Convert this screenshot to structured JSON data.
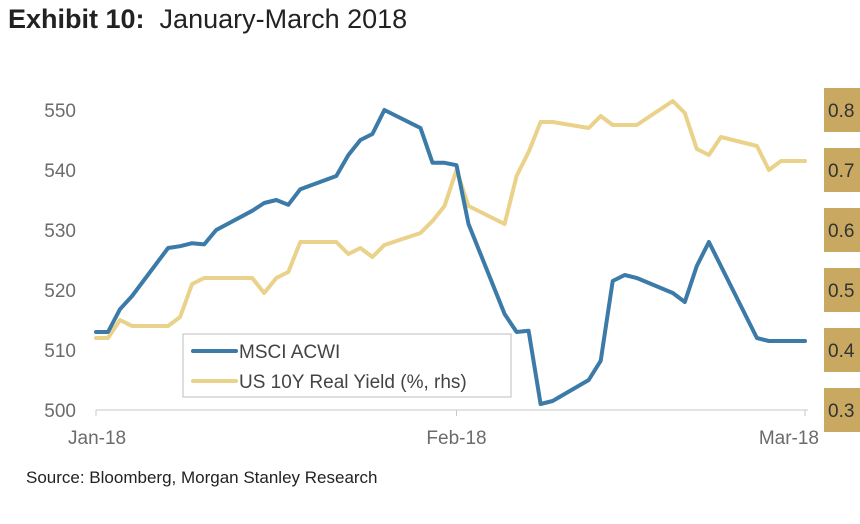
{
  "title": {
    "lead": "Exhibit 10:",
    "rest": "January-March 2018"
  },
  "source": "Source: Bloomberg, Morgan Stanley Research",
  "colors": {
    "msci": "#3c7aa8",
    "yield": "#ead28a",
    "rhs_tag": "#c9a962",
    "axis": "#c8c8c8"
  },
  "chart_data": {
    "type": "line",
    "x_axis": {
      "ticks": [
        "Jan-18",
        "Feb-18",
        "Mar-18"
      ],
      "range": [
        "2018-01-02",
        "2018-03-02"
      ]
    },
    "y_left": {
      "ticks": [
        "550",
        "540",
        "530",
        "520",
        "510",
        "500"
      ],
      "range": [
        500,
        552
      ]
    },
    "y_right": {
      "ticks": [
        "0.8",
        "0.7",
        "0.6",
        "0.5",
        "0.4",
        "0.3"
      ],
      "range": [
        0.3,
        0.82
      ]
    },
    "legend": "lower-left",
    "series": [
      {
        "name": "MSCI ACWI",
        "axis": "left",
        "x": [
          "2018-01-02",
          "2018-01-03",
          "2018-01-04",
          "2018-01-05",
          "2018-01-08",
          "2018-01-09",
          "2018-01-10",
          "2018-01-11",
          "2018-01-12",
          "2018-01-15",
          "2018-01-16",
          "2018-01-17",
          "2018-01-18",
          "2018-01-19",
          "2018-01-22",
          "2018-01-23",
          "2018-01-24",
          "2018-01-25",
          "2018-01-26",
          "2018-01-29",
          "2018-01-30",
          "2018-01-31",
          "2018-02-01",
          "2018-02-02",
          "2018-02-05",
          "2018-02-06",
          "2018-02-07",
          "2018-02-08",
          "2018-02-09",
          "2018-02-12",
          "2018-02-13",
          "2018-02-14",
          "2018-02-15",
          "2018-02-16",
          "2018-02-19",
          "2018-02-20",
          "2018-02-21",
          "2018-02-22",
          "2018-02-23",
          "2018-02-26",
          "2018-02-27",
          "2018-02-28",
          "2018-03-01",
          "2018-03-02"
        ],
        "values": [
          513.0,
          513.0,
          516.8,
          519.0,
          527.0,
          527.3,
          527.8,
          527.6,
          530.0,
          533.2,
          534.5,
          535.0,
          534.2,
          536.8,
          539.0,
          542.5,
          545.0,
          546.0,
          550.0,
          547.0,
          541.2,
          541.2,
          540.8,
          531.0,
          516.0,
          513.0,
          513.2,
          501.0,
          501.5,
          505.0,
          508.2,
          521.5,
          522.5,
          522.0,
          519.5,
          518.0,
          524.0,
          528.0,
          524.0,
          512.0,
          511.5,
          511.5,
          511.5,
          511.5
        ]
      },
      {
        "name": "US 10Y Real Yield (%, rhs)",
        "axis": "right",
        "x": [
          "2018-01-02",
          "2018-01-03",
          "2018-01-04",
          "2018-01-05",
          "2018-01-08",
          "2018-01-09",
          "2018-01-10",
          "2018-01-11",
          "2018-01-12",
          "2018-01-15",
          "2018-01-16",
          "2018-01-17",
          "2018-01-18",
          "2018-01-19",
          "2018-01-22",
          "2018-01-23",
          "2018-01-24",
          "2018-01-25",
          "2018-01-26",
          "2018-01-29",
          "2018-01-30",
          "2018-01-31",
          "2018-02-01",
          "2018-02-02",
          "2018-02-05",
          "2018-02-06",
          "2018-02-07",
          "2018-02-08",
          "2018-02-09",
          "2018-02-12",
          "2018-02-13",
          "2018-02-14",
          "2018-02-15",
          "2018-02-16",
          "2018-02-19",
          "2018-02-20",
          "2018-02-21",
          "2018-02-22",
          "2018-02-23",
          "2018-02-26",
          "2018-02-27",
          "2018-02-28",
          "2018-03-01",
          "2018-03-02"
        ],
        "values": [
          0.42,
          0.42,
          0.45,
          0.44,
          0.44,
          0.455,
          0.51,
          0.52,
          0.52,
          0.52,
          0.495,
          0.52,
          0.53,
          0.58,
          0.58,
          0.56,
          0.57,
          0.555,
          0.575,
          0.595,
          0.615,
          0.64,
          0.7,
          0.64,
          0.61,
          0.69,
          0.73,
          0.78,
          0.78,
          0.77,
          0.79,
          0.775,
          0.775,
          0.775,
          0.815,
          0.795,
          0.735,
          0.725,
          0.755,
          0.74,
          0.7,
          0.715,
          0.715,
          0.715
        ]
      }
    ]
  }
}
